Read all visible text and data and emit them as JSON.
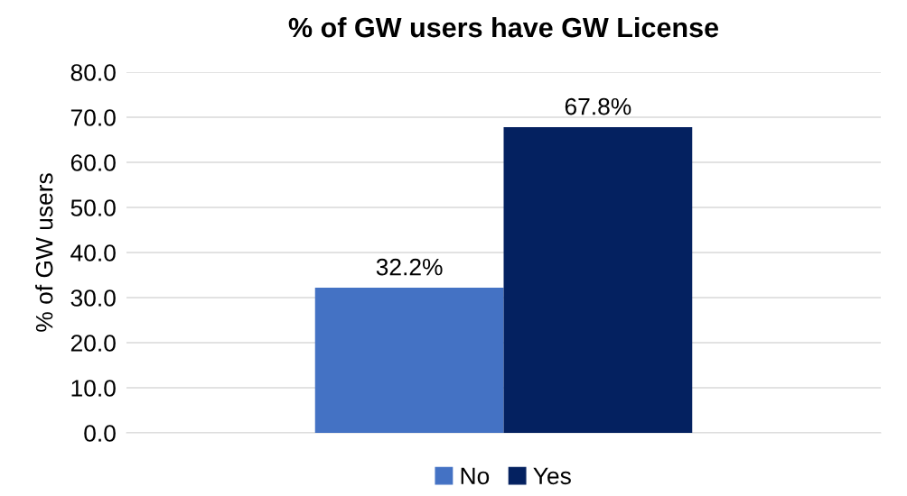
{
  "chart_data": {
    "type": "bar",
    "title": "% of GW users have GW License",
    "ylabel": "% of GW users",
    "categories": [
      null
    ],
    "series": [
      {
        "name": "No",
        "color": "#4472c4",
        "values": [
          32.2
        ],
        "value_labels": [
          "32.2%"
        ]
      },
      {
        "name": "Yes",
        "color": "#042160",
        "values": [
          67.8
        ],
        "value_labels": [
          "67.8%"
        ]
      }
    ],
    "ylim": [
      0,
      80
    ],
    "yticks": [
      {
        "value": 0,
        "label": "0.0"
      },
      {
        "value": 10,
        "label": "10.0"
      },
      {
        "value": 20,
        "label": "20.0"
      },
      {
        "value": 30,
        "label": "30.0"
      },
      {
        "value": 40,
        "label": "40.0"
      },
      {
        "value": 50,
        "label": "50.0"
      },
      {
        "value": 60,
        "label": "60.0"
      },
      {
        "value": 70,
        "label": "70.0"
      },
      {
        "value": 80,
        "label": "80.0"
      }
    ],
    "grid": "y",
    "legend": "bottom"
  }
}
